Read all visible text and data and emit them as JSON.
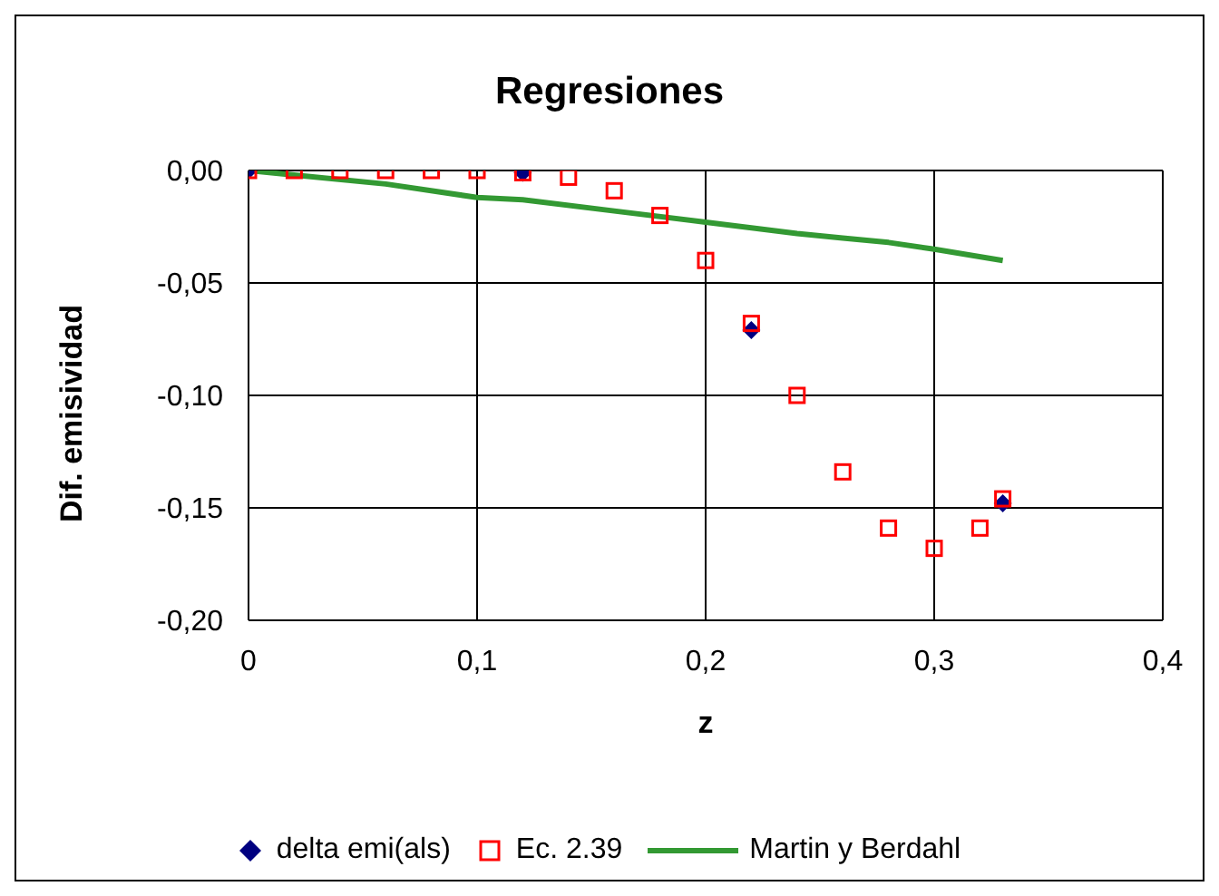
{
  "chart_data": {
    "type": "scatter",
    "title": "Regresiones",
    "xlabel": "z",
    "ylabel": "Dif. emisividad",
    "xlim": [
      0,
      0.4
    ],
    "xticks": [
      0,
      {
        "value": 0.1,
        "label": "0,1"
      },
      {
        "value": 0.2,
        "label": "0,2"
      },
      {
        "value": 0.3,
        "label": "0,3"
      },
      {
        "value": 0.4,
        "label": "0,4"
      }
    ],
    "ylim": [
      -0.2,
      0
    ],
    "yticks": [
      {
        "value": -0.2,
        "label": "-0,20"
      },
      {
        "value": -0.15,
        "label": "-0,15"
      },
      {
        "value": -0.1,
        "label": "-0,10"
      },
      {
        "value": -0.05,
        "label": "-0,05"
      },
      {
        "value": 0,
        "label": "0,00"
      }
    ],
    "grid": true,
    "legend": "bottom",
    "series": [
      {
        "name": "delta emi(als)",
        "marker": "diamond",
        "color": "#000080",
        "x": [
          0,
          0.12,
          0.22,
          0.33
        ],
        "values": [
          0,
          -0.001,
          -0.071,
          -0.148
        ]
      },
      {
        "name": "Ec. 2.39",
        "marker": "square",
        "color": "#ff0000",
        "x": [
          0,
          0.02,
          0.04,
          0.06,
          0.08,
          0.1,
          0.12,
          0.14,
          0.16,
          0.18,
          0.2,
          0.22,
          0.24,
          0.26,
          0.28,
          0.3,
          0.32,
          0.33
        ],
        "values": [
          0,
          0,
          0,
          0,
          0,
          0,
          -0.001,
          -0.003,
          -0.009,
          -0.02,
          -0.04,
          -0.068,
          -0.1,
          -0.134,
          -0.159,
          -0.168,
          -0.159,
          -0.146
        ]
      },
      {
        "name": "Martin y Berdahl",
        "type": "line",
        "marker": "none",
        "line_style": "solid",
        "color": "#339933",
        "x": [
          0,
          0.02,
          0.06,
          0.1,
          0.12,
          0.16,
          0.2,
          0.24,
          0.26,
          0.28,
          0.3,
          0.33
        ],
        "values": [
          0,
          -0.002,
          -0.006,
          -0.012,
          -0.013,
          -0.018,
          -0.023,
          -0.028,
          -0.03,
          -0.032,
          -0.035,
          -0.04
        ]
      }
    ]
  }
}
